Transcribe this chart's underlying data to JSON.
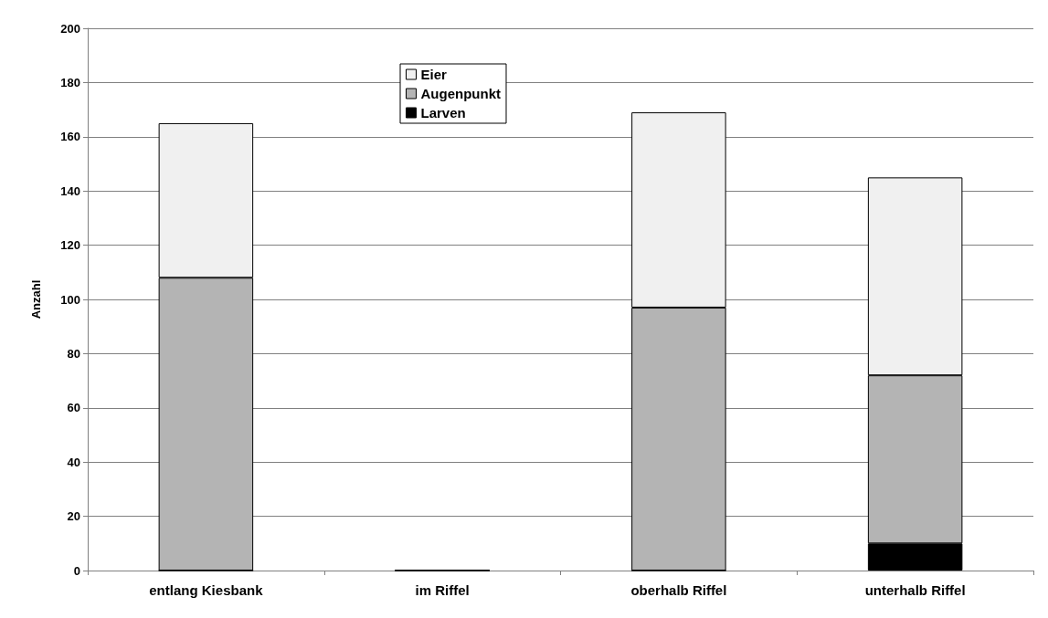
{
  "chart_data": {
    "type": "bar",
    "stacked": true,
    "ylabel": "Anzahl",
    "categories": [
      "entlang Kiesbank",
      "im Riffel",
      "oberhalb Riffel",
      "unterhalb Riffel"
    ],
    "series": [
      {
        "name": "Larven",
        "color": "#000000",
        "values": [
          0,
          0,
          0,
          10
        ]
      },
      {
        "name": "Augenpunkt",
        "color": "#b4b4b4",
        "values": [
          108,
          0,
          97,
          62
        ]
      },
      {
        "name": "Eier",
        "color": "#f0f0f0",
        "values": [
          57,
          0,
          72,
          73
        ]
      }
    ],
    "ylim": [
      0,
      200
    ],
    "yticks": [
      0,
      20,
      40,
      60,
      80,
      100,
      120,
      140,
      160,
      180,
      200
    ],
    "grid": "y",
    "legend": "top"
  }
}
